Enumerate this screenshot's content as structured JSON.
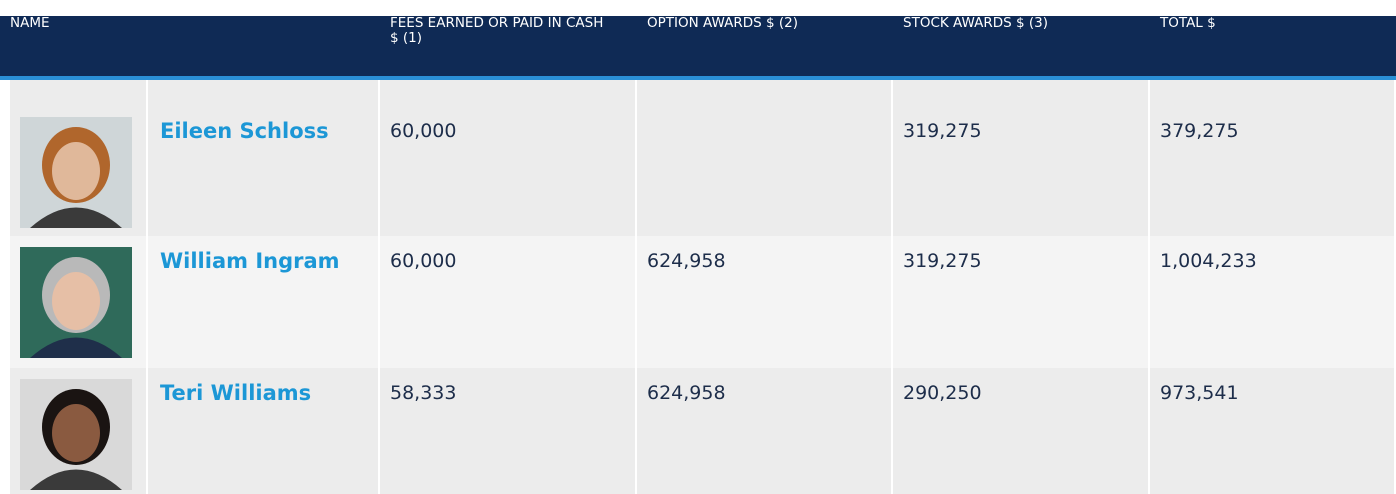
{
  "table": {
    "headers": [
      "NAME",
      "FEES EARNED OR PAID IN CASH $ (1)",
      "OPTION AWARDS $ (2)",
      "STOCK AWARDS $ (3)",
      "TOTAL $"
    ],
    "rows": [
      [
        "Eileen Schloss",
        "60,000",
        null,
        "319,275",
        "379,275"
      ],
      [
        "William Ingram",
        "60,000",
        "624,958",
        "319,275",
        "1,004,233"
      ],
      [
        "Teri Williams",
        "58,333",
        "624,958",
        "290,250",
        "973,541"
      ]
    ]
  }
}
